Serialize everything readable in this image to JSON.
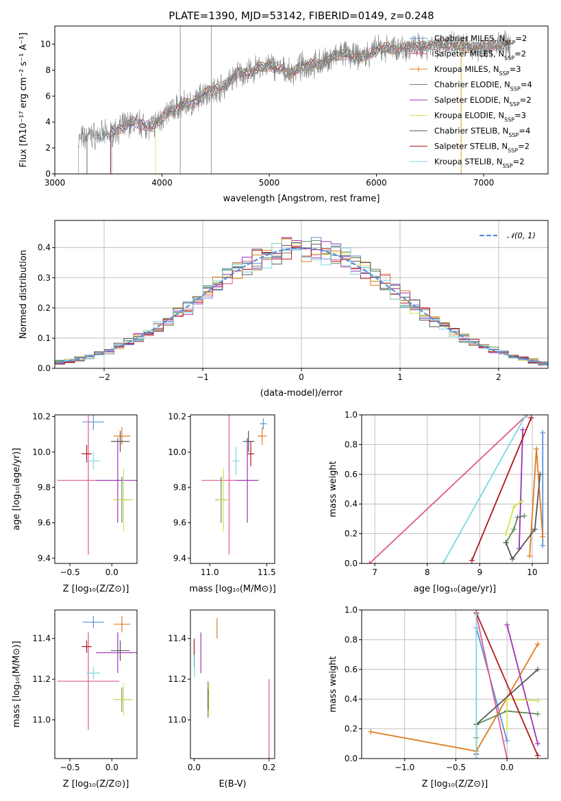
{
  "figure_title": "PLATE=1390, MJD=53142, FIBERID=0149, z=0.248",
  "models": [
    {
      "name": "Chabrier MILES",
      "nssp": "2",
      "color": "#5b8fd9"
    },
    {
      "name": "Salpeter MILES",
      "nssp": "2",
      "color": "#e1578f"
    },
    {
      "name": "Kroupa MILES",
      "nssp": "3",
      "color": "#e07b1f"
    },
    {
      "name": "Chabrier ELODIE",
      "nssp": "4",
      "color": "#5f8a5b"
    },
    {
      "name": "Salpeter ELODIE",
      "nssp": "2",
      "color": "#9b30b8"
    },
    {
      "name": "Kroupa ELODIE",
      "nssp": "3",
      "color": "#d6e04f"
    },
    {
      "name": "Chabrier STELIB",
      "nssp": "4",
      "color": "#555555"
    },
    {
      "name": "Salpeter STELIB",
      "nssp": "2",
      "color": "#b0141c"
    },
    {
      "name": "Kroupa STELIB",
      "nssp": "2",
      "color": "#7dd6dd"
    }
  ],
  "chart_data": [
    {
      "id": "spectrum",
      "type": "line",
      "xlabel": "wavelength [Angstrom, rest frame]",
      "ylabel": "Flux [fλ10⁻¹⁷ erg cm⁻² s⁻¹ A⁻¹]",
      "xlim": [
        3000,
        7600
      ],
      "ylim": [
        0,
        11.4
      ],
      "xticks": [
        3000,
        4000,
        5000,
        6000,
        7000
      ],
      "yticks": [
        0,
        2,
        4,
        6,
        8,
        10
      ],
      "observed_color": "#808080",
      "observed_range": [
        3220,
        7250
      ],
      "continuum": {
        "x": [
          3220,
          3300,
          3400,
          3500,
          3600,
          3700,
          3800,
          3900,
          4000,
          4100,
          4200,
          4300,
          4400,
          4500,
          4600,
          4700,
          4800,
          4900,
          5000,
          5100,
          5200,
          5300,
          5400,
          5500,
          5600,
          5700,
          5800,
          5900,
          6000,
          6200,
          6400,
          6600,
          6800,
          7000,
          7250
        ],
        "y": [
          2.6,
          2.9,
          3.0,
          3.0,
          3.5,
          3.9,
          3.9,
          3.6,
          4.3,
          5.0,
          5.3,
          5.5,
          6.3,
          6.5,
          6.9,
          7.7,
          7.8,
          8.1,
          8.4,
          8.1,
          7.7,
          8.3,
          8.4,
          8.6,
          9.0,
          9.3,
          9.0,
          9.1,
          9.6,
          9.7,
          9.8,
          10.0,
          9.8,
          9.8,
          10.0
        ]
      },
      "model_starts": [
        3300,
        3520,
        3520,
        3520,
        3530,
        3940,
        3300,
        3520,
        3530
      ]
    },
    {
      "id": "residuals",
      "type": "histogram",
      "xlabel": "(data-model)/error",
      "ylabel": "Normed distribution",
      "xlim": [
        -2.5,
        2.5
      ],
      "ylim": [
        0,
        0.49
      ],
      "xticks": [
        -2,
        -1,
        0,
        1,
        2
      ],
      "yticks": [
        0.0,
        0.1,
        0.2,
        0.3,
        0.4
      ],
      "bin_width": 0.1,
      "reference_curve": {
        "name": "𝒩(0, 1)",
        "color": "#5b8fd9"
      },
      "grid": true,
      "legend": "top-right"
    },
    {
      "id": "age_vs_Z",
      "type": "scatter",
      "xlabel": "Z [log₁₀(Z/Z⊙)]",
      "ylabel": "age  [log₁₀(age/yr)]",
      "xlim": [
        -0.68,
        0.3
      ],
      "ylim": [
        9.37,
        10.21
      ],
      "xticks": [
        -0.5,
        0.0
      ],
      "yticks": [
        9.4,
        9.6,
        9.8,
        10.0,
        10.2
      ],
      "points": [
        {
          "x": -0.22,
          "y": 10.17,
          "xerr": 0.13,
          "yerr": 0.045
        },
        {
          "x": -0.28,
          "y": 9.84,
          "xerr": 0.37,
          "yerr": 0.42
        },
        {
          "x": 0.12,
          "y": 10.09,
          "xerr": 0.1,
          "yerr": 0.05
        },
        {
          "x": 0.12,
          "y": 9.73,
          "xerr": 0.1,
          "yerr": 0.13
        },
        {
          "x": 0.07,
          "y": 9.84,
          "xerr": 0.26,
          "yerr": 0.24
        },
        {
          "x": 0.14,
          "y": 9.73,
          "xerr": 0.12,
          "yerr": 0.18
        },
        {
          "x": 0.1,
          "y": 10.06,
          "xerr": 0.11,
          "yerr": 0.06
        },
        {
          "x": -0.3,
          "y": 9.99,
          "xerr": 0.06,
          "yerr": 0.05
        },
        {
          "x": -0.22,
          "y": 9.95,
          "xerr": 0.08,
          "yerr": 0.05
        }
      ]
    },
    {
      "id": "age_vs_mass",
      "type": "scatter",
      "xlabel": "mass [log₁₀(M/M⊙)]",
      "ylabel": "",
      "xlim": [
        10.83,
        11.57
      ],
      "ylim": [
        9.37,
        10.21
      ],
      "xticks": [
        11.0,
        11.5
      ],
      "yticks": [
        9.4,
        9.6,
        9.8,
        10.0,
        10.2
      ],
      "points": [
        {
          "x": 11.47,
          "y": 10.16,
          "xerr": 0.03,
          "yerr": 0.03
        },
        {
          "x": 11.17,
          "y": 9.84,
          "xerr": 0.24,
          "yerr": 0.42
        },
        {
          "x": 11.46,
          "y": 10.09,
          "xerr": 0.04,
          "yerr": 0.05
        },
        {
          "x": 11.1,
          "y": 9.73,
          "xerr": 0.05,
          "yerr": 0.13
        },
        {
          "x": 11.33,
          "y": 9.84,
          "xerr": 0.1,
          "yerr": 0.24
        },
        {
          "x": 11.12,
          "y": 9.73,
          "xerr": 0.06,
          "yerr": 0.18
        },
        {
          "x": 11.34,
          "y": 10.06,
          "xerr": 0.05,
          "yerr": 0.06
        },
        {
          "x": 11.36,
          "y": 9.99,
          "xerr": 0.03,
          "yerr": 0.07
        },
        {
          "x": 11.23,
          "y": 9.95,
          "xerr": 0.03,
          "yerr": 0.08
        }
      ]
    },
    {
      "id": "weight_vs_age",
      "type": "line",
      "xlabel": "age  [log₁₀(age/yr)]",
      "ylabel": "mass weight",
      "xlim": [
        6.75,
        10.3
      ],
      "ylim": [
        0,
        1
      ],
      "xticks": [
        7,
        8,
        9,
        10
      ],
      "yticks": [
        0.0,
        0.2,
        0.4,
        0.6,
        0.8,
        1.0
      ],
      "grid": true,
      "series": [
        {
          "age": [
            10.2,
            10.2
          ],
          "w": [
            0.12,
            0.88
          ]
        },
        {
          "age": [
            6.9,
            9.9
          ],
          "w": [
            0.0,
            1.0
          ]
        },
        {
          "age": [
            9.95,
            10.08,
            10.2
          ],
          "w": [
            0.05,
            0.77,
            0.18
          ]
        },
        {
          "age": [
            9.5,
            9.65,
            9.72,
            9.85
          ],
          "w": [
            0.14,
            0.23,
            0.31,
            0.32
          ]
        },
        {
          "age": [
            9.75,
            9.82
          ],
          "w": [
            0.1,
            0.9
          ]
        },
        {
          "age": [
            9.5,
            9.65,
            9.8
          ],
          "w": [
            0.2,
            0.38,
            0.42
          ]
        },
        {
          "age": [
            9.5,
            9.62,
            10.05,
            10.15
          ],
          "w": [
            0.14,
            0.03,
            0.23,
            0.6
          ]
        },
        {
          "age": [
            8.85,
            9.98
          ],
          "w": [
            0.02,
            0.98
          ]
        },
        {
          "age": [
            8.3,
            9.88
          ],
          "w": [
            0.0,
            1.0
          ]
        }
      ]
    },
    {
      "id": "mass_vs_Z",
      "type": "scatter",
      "xlabel": "Z [log₁₀(Z/Z⊙)]",
      "ylabel": "mass [log₁₀(M/M⊙)]",
      "xlim": [
        -0.68,
        0.3
      ],
      "ylim": [
        10.81,
        11.54
      ],
      "xticks": [
        -0.5,
        0.0
      ],
      "yticks": [
        11.0,
        11.2,
        11.4
      ],
      "points": [
        {
          "x": -0.22,
          "y": 11.48,
          "xerr": 0.13,
          "yerr": 0.03
        },
        {
          "x": -0.28,
          "y": 11.19,
          "xerr": 0.37,
          "yerr": 0.24
        },
        {
          "x": 0.12,
          "y": 11.47,
          "xerr": 0.1,
          "yerr": 0.04
        },
        {
          "x": 0.12,
          "y": 11.1,
          "xerr": 0.1,
          "yerr": 0.06
        },
        {
          "x": 0.07,
          "y": 11.33,
          "xerr": 0.26,
          "yerr": 0.1
        },
        {
          "x": 0.14,
          "y": 11.1,
          "xerr": 0.12,
          "yerr": 0.08
        },
        {
          "x": 0.1,
          "y": 11.34,
          "xerr": 0.11,
          "yerr": 0.05
        },
        {
          "x": -0.3,
          "y": 11.36,
          "xerr": 0.06,
          "yerr": 0.03
        },
        {
          "x": -0.22,
          "y": 11.23,
          "xerr": 0.08,
          "yerr": 0.03
        }
      ]
    },
    {
      "id": "mass_vs_ebv",
      "type": "scatter",
      "xlabel": "E(B-V)",
      "ylabel": "",
      "xlim": [
        -0.01,
        0.215
      ],
      "ylim": [
        10.81,
        11.54
      ],
      "xticks": [
        0.0,
        0.2
      ],
      "yticks": [
        11.0,
        11.2,
        11.4
      ],
      "points": [
        {
          "x": 0.0,
          "y": 11.3,
          "xerr": 0.0,
          "yerr": 0.04
        },
        {
          "x": 0.2,
          "y": 11.0,
          "xerr": 0.0,
          "yerr": 0.2
        },
        {
          "x": 0.061,
          "y": 11.45,
          "xerr": 0.0,
          "yerr": 0.05
        },
        {
          "x": 0.037,
          "y": 11.1,
          "xerr": 0.0,
          "yerr": 0.09
        },
        {
          "x": 0.018,
          "y": 11.33,
          "xerr": 0.0,
          "yerr": 0.1
        },
        {
          "x": 0.039,
          "y": 11.1,
          "xerr": 0.0,
          "yerr": 0.08
        },
        {
          "x": 0.037,
          "y": 11.1,
          "xerr": 0.0,
          "yerr": 0.05
        },
        {
          "x": 0.0,
          "y": 11.36,
          "xerr": 0.0,
          "yerr": 0.04
        },
        {
          "x": 0.001,
          "y": 11.26,
          "xerr": 0.0,
          "yerr": 0.05
        }
      ]
    },
    {
      "id": "weight_vs_Z",
      "type": "line",
      "xlabel": "Z [log₁₀(Z/Z⊙)]",
      "ylabel": "mass weight",
      "xlim": [
        -1.42,
        0.4
      ],
      "ylim": [
        0,
        1
      ],
      "xticks": [
        -1.0,
        -0.5,
        0.0
      ],
      "yticks": [
        0.0,
        0.2,
        0.4,
        0.6,
        0.8,
        1.0
      ],
      "grid": true,
      "series": [
        {
          "Z": [
            -0.3,
            0.0
          ],
          "w": [
            0.88,
            0.12
          ]
        },
        {
          "Z": [
            -0.3,
            0.0
          ],
          "w": [
            0.97,
            0.0
          ]
        },
        {
          "Z": [
            -1.33,
            -0.3,
            0.3
          ],
          "w": [
            0.18,
            0.05,
            0.77
          ]
        },
        {
          "Z": [
            -0.3,
            -0.3,
            0.0,
            0.3
          ],
          "w": [
            0.14,
            0.23,
            0.32,
            0.3
          ]
        },
        {
          "Z": [
            0.0,
            0.3
          ],
          "w": [
            0.9,
            0.1
          ]
        },
        {
          "Z": [
            0.0,
            0.0,
            0.3
          ],
          "w": [
            0.2,
            0.4,
            0.39
          ]
        },
        {
          "Z": [
            -0.3,
            -0.3,
            0.3
          ],
          "w": [
            0.03,
            0.23,
            0.6
          ]
        },
        {
          "Z": [
            -0.3,
            0.3
          ],
          "w": [
            0.98,
            0.02
          ]
        },
        {
          "Z": [
            -0.3,
            -0.3
          ],
          "w": [
            0.0,
            0.97
          ]
        }
      ]
    }
  ]
}
